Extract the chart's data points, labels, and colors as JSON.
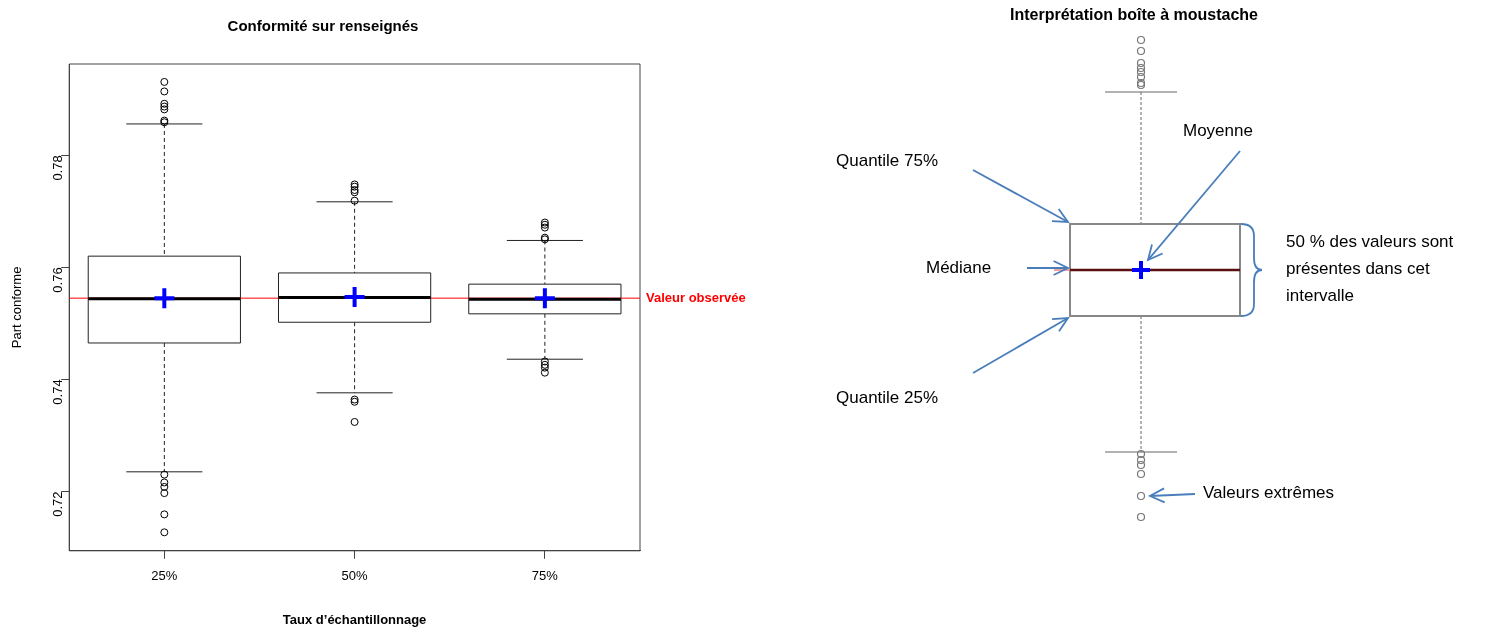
{
  "chart_data": [
    {
      "type": "box",
      "title": "Conformité sur renseignés",
      "xlabel": "Taux d’échantillonnage",
      "ylabel": "Part conforme",
      "categories": [
        "25%",
        "50%",
        "75%"
      ],
      "boxes": [
        {
          "low": 0.7235,
          "q1": 0.7465,
          "median": 0.7544,
          "q3": 0.762,
          "high": 0.7856,
          "mean": 0.7545,
          "outliers": [
            0.7931,
            0.7914,
            0.7892,
            0.7887,
            0.7882,
            0.7862,
            0.7859,
            0.723,
            0.7216,
            0.7208,
            0.7197,
            0.7159,
            0.7127
          ]
        },
        {
          "low": 0.7376,
          "q1": 0.7502,
          "median": 0.7546,
          "q3": 0.759,
          "high": 0.7717,
          "mean": 0.7547,
          "outliers": [
            0.7748,
            0.7744,
            0.7738,
            0.7734,
            0.7719,
            0.7364,
            0.736,
            0.7324
          ]
        },
        {
          "low": 0.7436,
          "q1": 0.7517,
          "median": 0.7543,
          "q3": 0.757,
          "high": 0.7648,
          "mean": 0.7545,
          "outliers": [
            0.768,
            0.7676,
            0.7671,
            0.7653,
            0.765,
            0.7432,
            0.7426,
            0.7421,
            0.7412
          ]
        }
      ],
      "ylim": [
        0.7094,
        0.7963
      ],
      "yticks": [
        0.72,
        0.74,
        0.76,
        0.78
      ],
      "grid": false,
      "ref_lines": [
        {
          "axis": "y",
          "value": 0.7545,
          "label": "Valeur observée",
          "color": "#ff0000"
        }
      ]
    },
    {
      "type": "other",
      "title": "Interprétation boîte à moustache",
      "annotations": [
        "Moyenne",
        "Quantile 75%",
        "Médiane",
        "Quantile 25%",
        "50 % des valeurs sont présentes dans cet intervalle",
        "Valeurs extrêmes"
      ]
    }
  ]
}
